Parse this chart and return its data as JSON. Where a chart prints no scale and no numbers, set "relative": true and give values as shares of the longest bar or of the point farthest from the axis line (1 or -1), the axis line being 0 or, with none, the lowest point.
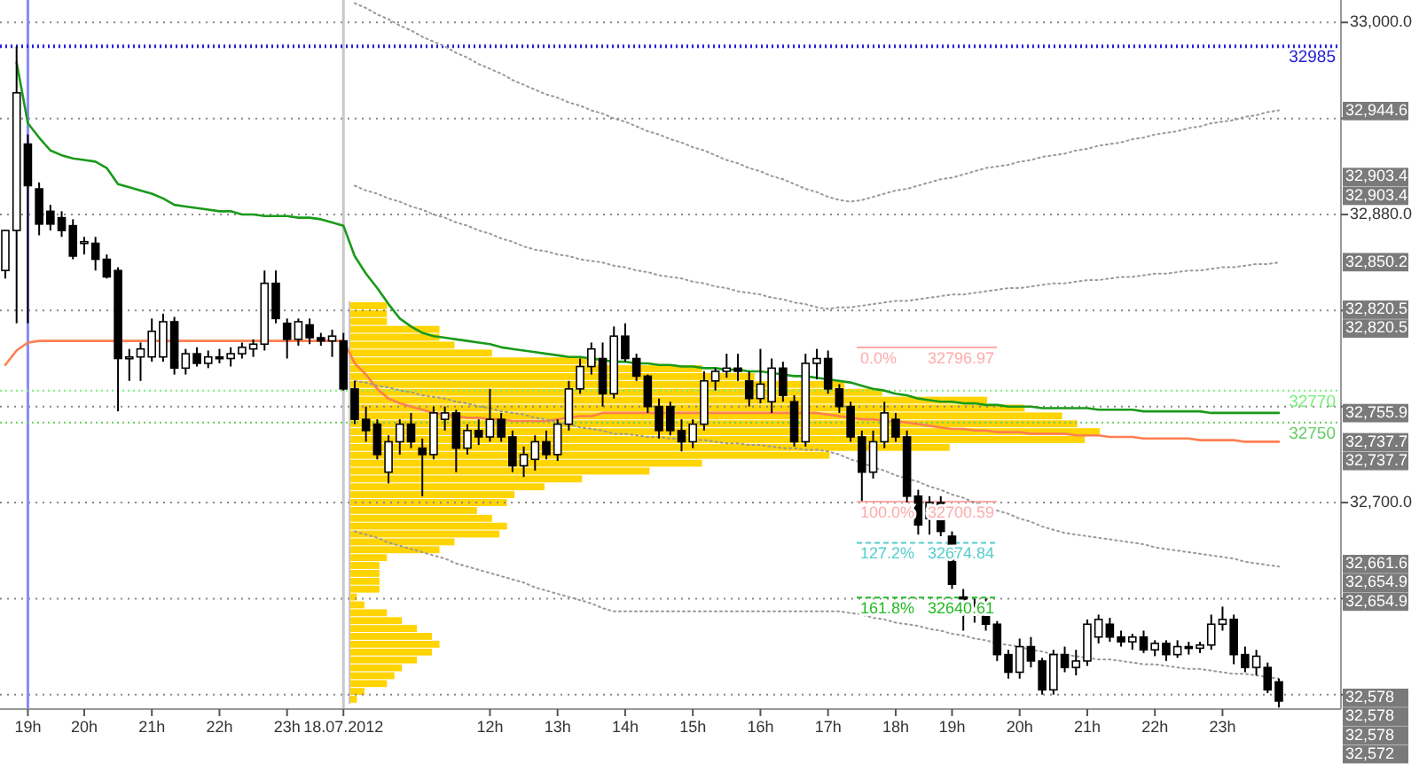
{
  "chart_data": [
    {
      "type": "candlestick",
      "color": "#000000",
      "grid": "y",
      "categories": [
        null,
        null,
        "19h",
        null,
        null,
        null,
        null,
        "20h",
        null,
        null,
        null,
        null,
        null,
        "21h",
        null,
        null,
        null,
        null,
        null,
        "22h",
        null,
        null,
        null,
        null,
        null,
        "23h",
        null,
        null,
        null,
        null,
        "18.07.2012",
        null,
        null,
        null,
        null,
        null,
        null,
        null,
        null,
        null,
        null,
        null,
        null,
        "12h",
        null,
        null,
        null,
        null,
        null,
        "13h",
        null,
        null,
        null,
        null,
        null,
        "14h",
        null,
        null,
        null,
        null,
        null,
        "15h",
        null,
        null,
        null,
        null,
        null,
        "16h",
        null,
        null,
        null,
        null,
        null,
        "17h",
        null,
        null,
        null,
        null,
        null,
        "18h",
        null,
        null,
        null,
        null,
        "19h",
        null,
        null,
        null,
        null,
        null,
        "20h",
        null,
        null,
        null,
        null,
        null,
        "21h",
        null,
        null,
        null,
        null,
        null,
        "22h",
        null,
        null,
        null,
        null,
        null,
        "23h",
        null,
        null,
        null,
        null,
        null
      ],
      "ohlc": [
        [
          32845,
          32870,
          32840,
          32870
        ],
        [
          32870,
          32985,
          32812,
          32956
        ],
        [
          32924,
          32930,
          32812,
          32898
        ],
        [
          32896,
          32900,
          32867,
          32874
        ],
        [
          32882,
          32886,
          32870,
          32874
        ],
        [
          32878,
          32882,
          32866,
          32870
        ],
        [
          32873,
          32877,
          32852,
          32854
        ],
        [
          32862,
          32866,
          32855,
          32863
        ],
        [
          32862,
          32866,
          32845,
          32852
        ],
        [
          32852,
          32855,
          32840,
          32841
        ],
        [
          32845,
          32847,
          32757,
          32790
        ],
        [
          32790,
          32796,
          32776,
          32791
        ],
        [
          32791,
          32800,
          32776,
          32796
        ],
        [
          32791,
          32815,
          32788,
          32807
        ],
        [
          32791,
          32818,
          32788,
          32813
        ],
        [
          32813,
          32816,
          32780,
          32784
        ],
        [
          32784,
          32796,
          32780,
          32793
        ],
        [
          32793,
          32797,
          32785,
          32787
        ],
        [
          32787,
          32795,
          32784,
          32791
        ],
        [
          32791,
          32796,
          32787,
          32790
        ],
        [
          32790,
          32797,
          32785,
          32793
        ],
        [
          32793,
          32800,
          32790,
          32797
        ],
        [
          32796,
          32802,
          32791,
          32799
        ],
        [
          32799,
          32845,
          32795,
          32837
        ],
        [
          32837,
          32845,
          32812,
          32815
        ],
        [
          32812,
          32815,
          32790,
          32802
        ],
        [
          32802,
          32815,
          32798,
          32813
        ],
        [
          32811,
          32815,
          32799,
          32803
        ],
        [
          32803,
          32806,
          32798,
          32801
        ],
        [
          32801,
          32808,
          32791,
          32804
        ],
        [
          32801,
          32806,
          32770,
          32771
        ],
        [
          32771,
          32776,
          32749,
          32752
        ],
        [
          32752,
          32760,
          32738,
          32745
        ],
        [
          32749,
          32752,
          32727,
          32730
        ],
        [
          32719,
          32742,
          32712,
          32738
        ],
        [
          32738,
          32752,
          32730,
          32749
        ],
        [
          32749,
          32756,
          32734,
          32738
        ],
        [
          32734,
          32740,
          32704,
          32730
        ],
        [
          32730,
          32760,
          32727,
          32756
        ],
        [
          32752,
          32760,
          32745,
          32756
        ],
        [
          32756,
          32758,
          32719,
          32734
        ],
        [
          32734,
          32749,
          32730,
          32745
        ],
        [
          32745,
          32752,
          32736,
          32741
        ],
        [
          32741,
          32771,
          32738,
          32752
        ],
        [
          32752,
          32756,
          32738,
          32741
        ],
        [
          32741,
          32745,
          32719,
          32723
        ],
        [
          32723,
          32735,
          32716,
          32730
        ],
        [
          32727,
          32742,
          32720,
          32738
        ],
        [
          32738,
          32745,
          32727,
          32730
        ],
        [
          32730,
          32752,
          32726,
          32749
        ],
        [
          32749,
          32776,
          32745,
          32771
        ],
        [
          32771,
          32790,
          32768,
          32785
        ],
        [
          32785,
          32800,
          32780,
          32796
        ],
        [
          32790,
          32800,
          32760,
          32768
        ],
        [
          32768,
          32810,
          32765,
          32804
        ],
        [
          32804,
          32812,
          32788,
          32790
        ],
        [
          32790,
          32793,
          32776,
          32779
        ],
        [
          32779,
          32780,
          32756,
          32760
        ],
        [
          32760,
          32765,
          32740,
          32745
        ],
        [
          32760,
          32763,
          32742,
          32745
        ],
        [
          32745,
          32752,
          32732,
          32738
        ],
        [
          32738,
          32752,
          32734,
          32749
        ],
        [
          32749,
          32782,
          32745,
          32776
        ],
        [
          32776,
          32784,
          32770,
          32782
        ],
        [
          32782,
          32793,
          32778,
          32784
        ],
        [
          32784,
          32793,
          32776,
          32782
        ],
        [
          32776,
          32782,
          32760,
          32765
        ],
        [
          32765,
          32796,
          32762,
          32774
        ],
        [
          32763,
          32790,
          32756,
          32784
        ],
        [
          32784,
          32788,
          32763,
          32767
        ],
        [
          32763,
          32767,
          32735,
          32738
        ],
        [
          32738,
          32793,
          32735,
          32787
        ],
        [
          32787,
          32796,
          32777,
          32790
        ],
        [
          32790,
          32795,
          32768,
          32771
        ],
        [
          32771,
          32774,
          32756,
          32760
        ],
        [
          32760,
          32763,
          32738,
          32741
        ],
        [
          32741,
          32745,
          32701,
          32719
        ],
        [
          32719,
          32745,
          32715,
          32738
        ],
        [
          32738,
          32763,
          32734,
          32756
        ],
        [
          32752,
          32756,
          32738,
          32741
        ],
        [
          32741,
          32745,
          32700,
          32704
        ],
        [
          32704,
          32708,
          32680,
          32686
        ],
        [
          32690,
          32704,
          32680,
          32700
        ],
        [
          32700,
          32704,
          32679,
          32682
        ],
        [
          32679,
          32682,
          32646,
          32649
        ],
        [
          32641,
          32646,
          32620,
          32630
        ],
        [
          32630,
          32640,
          32625,
          32635
        ],
        [
          32635,
          32640,
          32620,
          32624
        ],
        [
          32624,
          32626,
          32601,
          32605
        ],
        [
          32605,
          32608,
          32590,
          32594
        ],
        [
          32594,
          32615,
          32590,
          32610
        ],
        [
          32610,
          32616,
          32597,
          32601
        ],
        [
          32601,
          32603,
          32580,
          32583
        ],
        [
          32583,
          32608,
          32580,
          32605
        ],
        [
          32605,
          32610,
          32594,
          32597
        ],
        [
          32597,
          32608,
          32592,
          32601
        ],
        [
          32601,
          32627,
          32598,
          32624
        ],
        [
          32616,
          32630,
          32612,
          32627
        ],
        [
          32624,
          32628,
          32613,
          32616
        ],
        [
          32616,
          32620,
          32610,
          32613
        ],
        [
          32613,
          32618,
          32608,
          32616
        ],
        [
          32616,
          32620,
          32606,
          32608
        ],
        [
          32608,
          32614,
          32604,
          32612
        ],
        [
          32612,
          32614,
          32601,
          32605
        ],
        [
          32605,
          32614,
          32603,
          32610
        ],
        [
          32610,
          32613,
          32605,
          32609
        ],
        [
          32609,
          32613,
          32606,
          32611
        ],
        [
          32611,
          32630,
          32608,
          32624
        ],
        [
          32624,
          32635,
          32620,
          32627
        ],
        [
          32627,
          32630,
          32599,
          32605
        ],
        [
          32605,
          32610,
          32594,
          32597
        ],
        [
          32597,
          32608,
          32592,
          32604
        ],
        [
          32597,
          32600,
          32581,
          32583
        ],
        [
          32588,
          32590,
          32572,
          32576
        ]
      ],
      "series": [
        {
          "type": "line",
          "color": "#1a9a1a",
          "line_style": "solid",
          "values": [
            null,
            32975,
            32937,
            32928,
            32920,
            32917,
            32915,
            32914,
            32913,
            32909,
            32899,
            32897,
            32895,
            32893,
            32890,
            32886,
            32885,
            32884,
            32883,
            32882,
            32882,
            32880,
            32880,
            32879,
            32879,
            32879,
            32878,
            32878,
            32877,
            32875,
            32873,
            32854,
            32843,
            32834,
            32824,
            32815,
            32810,
            32806,
            32804,
            32803,
            32802,
            32801,
            32800,
            32799,
            32797,
            32796,
            32795,
            32794,
            32793,
            32792,
            32791,
            32791,
            32790,
            32789,
            32788,
            32788,
            32787,
            32787,
            32786,
            32786,
            32785,
            32785,
            32784,
            32784,
            32783,
            32783,
            32782,
            32782,
            32781,
            32780,
            32779,
            32779,
            32778,
            32777,
            32776,
            32775,
            32773,
            32771,
            32770,
            32768,
            32767,
            32765,
            32764,
            32763,
            32763,
            32762,
            32762,
            32761,
            32761,
            32760,
            32760,
            32760,
            32759,
            32759,
            32759,
            32759,
            32759,
            32758,
            32758,
            32758,
            32758,
            32757,
            32757,
            32757,
            32757,
            32757,
            32757,
            32756,
            32756,
            32756,
            32756,
            32756,
            32756,
            32756
          ]
        },
        {
          "type": "line",
          "color": "#ff7f50",
          "line_style": "solid",
          "values": [
            32786,
            32795,
            32800,
            32801,
            32801,
            32801,
            32801,
            32801,
            32801,
            32801,
            32801,
            32801,
            32801,
            32801,
            32801,
            32801,
            32801,
            32801,
            32801,
            32801,
            32801,
            32801,
            32801,
            32801,
            32801,
            32801,
            32801,
            32801,
            32801,
            32801,
            32801,
            32787,
            32780,
            32771,
            32765,
            32762,
            32760,
            32758,
            32756,
            32755,
            32754,
            32753,
            32753,
            32752,
            32752,
            32751,
            32751,
            32751,
            32751,
            32752,
            32753,
            32754,
            32754,
            32756,
            32756,
            32756,
            32756,
            32756,
            32756,
            32756,
            32756,
            32756,
            32756,
            32756,
            32756,
            32756,
            32756,
            32756,
            32756,
            32756,
            32756,
            32756,
            32756,
            32755,
            32754,
            32753,
            32752,
            32752,
            32751,
            32751,
            32750,
            32749,
            32748,
            32747,
            32746,
            32746,
            32745,
            32745,
            32744,
            32744,
            32744,
            32743,
            32743,
            32743,
            32743,
            32742,
            32742,
            32742,
            32741,
            32741,
            32741,
            32740,
            32740,
            32740,
            32740,
            32740,
            32739,
            32739,
            32739,
            32739,
            32738,
            32738,
            32738,
            32738
          ]
        },
        {
          "type": "line",
          "color": "#999999",
          "line_style": "dotted",
          "values": [
            null,
            null,
            null,
            null,
            null,
            null,
            null,
            null,
            null,
            null,
            null,
            null,
            null,
            null,
            null,
            null,
            null,
            null,
            null,
            null,
            null,
            null,
            null,
            null,
            null,
            null,
            null,
            null,
            null,
            null,
            null,
            33012,
            33009,
            33005,
            33002,
            32998,
            32995,
            32991,
            32988,
            32985,
            32981,
            32978,
            32974,
            32971,
            32968,
            32964,
            32961,
            32958,
            32955,
            32953,
            32950,
            32948,
            32945,
            32943,
            32940,
            32938,
            32935,
            32932,
            32930,
            32927,
            32925,
            32922,
            32920,
            32917,
            32914,
            32912,
            32909,
            32907,
            32904,
            32902,
            32899,
            32896,
            32894,
            32891,
            32889,
            32888,
            32889,
            32891,
            32893,
            32895,
            32896,
            32898,
            32900,
            32902,
            32903,
            32905,
            32907,
            32909,
            32910,
            32911,
            32913,
            32914,
            32916,
            32917,
            32918,
            32920,
            32921,
            32923,
            32924,
            32925,
            32927,
            32928,
            32930,
            32931,
            32932,
            32934,
            32935,
            32937,
            32938,
            32939,
            32941,
            32942,
            32944,
            32945
          ]
        },
        {
          "type": "line",
          "color": "#999999",
          "line_style": "dotted",
          "values": [
            null,
            null,
            null,
            null,
            null,
            null,
            null,
            null,
            null,
            null,
            null,
            null,
            null,
            null,
            null,
            null,
            null,
            null,
            null,
            null,
            null,
            null,
            null,
            null,
            null,
            null,
            null,
            null,
            null,
            null,
            null,
            32898,
            32895,
            32893,
            32890,
            32888,
            32885,
            32883,
            32880,
            32878,
            32875,
            32873,
            32870,
            32868,
            32865,
            32863,
            32860,
            32858,
            32857,
            32855,
            32854,
            32852,
            32851,
            32850,
            32848,
            32847,
            32845,
            32844,
            32842,
            32841,
            32840,
            32838,
            32837,
            32835,
            32834,
            32832,
            32831,
            32830,
            32828,
            32827,
            32825,
            32824,
            32822,
            32821,
            32822,
            32822,
            32823,
            32824,
            32825,
            32826,
            32826,
            32827,
            32828,
            32829,
            32830,
            32830,
            32831,
            32832,
            32833,
            32834,
            32834,
            32835,
            32836,
            32837,
            32837,
            32838,
            32839,
            32839,
            32840,
            32841,
            32841,
            32842,
            32843,
            32843,
            32844,
            32845,
            32845,
            32846,
            32847,
            32847,
            32848,
            32849,
            32849,
            32850
          ]
        },
        {
          "type": "line",
          "color": "#999999",
          "line_style": "dotted",
          "values": [
            null,
            null,
            null,
            null,
            null,
            null,
            null,
            null,
            null,
            null,
            null,
            null,
            null,
            null,
            null,
            null,
            null,
            null,
            null,
            null,
            null,
            null,
            null,
            null,
            null,
            null,
            null,
            null,
            null,
            null,
            null,
            32776,
            32775,
            32773,
            32772,
            32770,
            32769,
            32767,
            32766,
            32765,
            32763,
            32762,
            32760,
            32759,
            32757,
            32756,
            32755,
            32753,
            32752,
            32750,
            32749,
            32747,
            32746,
            32745,
            32743,
            32743,
            32742,
            32741,
            32741,
            32740,
            32740,
            32739,
            32739,
            32738,
            32737,
            32737,
            32736,
            32736,
            32735,
            32734,
            32734,
            32733,
            32733,
            32732,
            32730,
            32727,
            32725,
            32722,
            32720,
            32717,
            32715,
            32713,
            32710,
            32708,
            32705,
            32703,
            32700,
            32698,
            32695,
            32693,
            32690,
            32688,
            32685,
            32683,
            32681,
            32680,
            32679,
            32678,
            32677,
            32676,
            32675,
            32674,
            32672,
            32671,
            32670,
            32669,
            32668,
            32667,
            32666,
            32665,
            32663,
            32662,
            32661,
            32660
          ]
        },
        {
          "type": "line",
          "color": "#999999",
          "line_style": "dotted",
          "values": [
            null,
            null,
            null,
            null,
            null,
            null,
            null,
            null,
            null,
            null,
            null,
            null,
            null,
            null,
            null,
            null,
            null,
            null,
            null,
            null,
            null,
            null,
            null,
            null,
            null,
            null,
            null,
            null,
            null,
            null,
            null,
            32682,
            32680,
            32678,
            32675,
            32673,
            32671,
            32669,
            32667,
            32665,
            32662,
            32660,
            32658,
            32656,
            32654,
            32652,
            32650,
            32647,
            32645,
            32643,
            32641,
            32639,
            32637,
            32634,
            32632,
            32632,
            32632,
            32632,
            32632,
            32632,
            32632,
            32632,
            32632,
            32632,
            32632,
            32632,
            32632,
            32632,
            32632,
            32632,
            32632,
            32632,
            32632,
            32632,
            32632,
            32631,
            32630,
            32628,
            32627,
            32625,
            32624,
            32623,
            32621,
            32620,
            32618,
            32617,
            32615,
            32614,
            32612,
            32611,
            32610,
            32608,
            32607,
            32605,
            32605,
            32604,
            32603,
            32602,
            32602,
            32601,
            32600,
            32599,
            32599,
            32598,
            32597,
            32596,
            32596,
            32595,
            32594,
            32593,
            32593,
            32592,
            32591,
            32590
          ]
        }
      ],
      "ylim": [
        32571,
        33014
      ],
      "yticks": [
        {
          "value": 32580,
          "label": null
        },
        {
          "value": 32640,
          "label": null
        },
        {
          "value": 32700,
          "label": "32,700.0"
        },
        {
          "value": 32760,
          "label": null
        },
        {
          "value": 32820,
          "label": null
        },
        {
          "value": 32880,
          "label": "32,880.0"
        },
        {
          "value": 32940,
          "label": null
        },
        {
          "value": 33000,
          "label": "33,000.0"
        }
      ],
      "ref_lines": [
        {
          "axis": "x",
          "value": "19h",
          "color": "#8888ff",
          "line_style": "solid"
        },
        {
          "axis": "x",
          "value": "18.07.2012",
          "color": "#c8c8c8",
          "line_style": "solid"
        },
        {
          "axis": "y",
          "value": 32985,
          "label": "32985",
          "color": "#2020dd",
          "line_style": "dotted"
        },
        {
          "axis": "y",
          "value": 32770,
          "label": "32770",
          "color": "#77ee77",
          "line_style": "dotted"
        },
        {
          "axis": "y",
          "value": 32750,
          "label": "32750",
          "color": "#66cc66",
          "line_style": "dotted"
        },
        {
          "axis": "y",
          "value": 32796.97,
          "label": "0.0%       32796.97",
          "color": "#ffaaaa",
          "line_style": "solid"
        },
        {
          "axis": "y",
          "value": 32700.59,
          "label": "100.0%   32700.59",
          "color": "#ffaaaa",
          "line_style": "solid"
        },
        {
          "axis": "y",
          "value": 32674.84,
          "label": "127.2%   32674.84",
          "color": "#55cccc",
          "line_style": "dashed"
        },
        {
          "axis": "y",
          "value": 32640.61,
          "label": "161.8%   32640.61",
          "color": "#22bb22",
          "line_style": "dashed"
        }
      ],
      "annotations": [
        "32,944.6",
        "32,903.4",
        "32,903.4",
        "32,850.2",
        "32,820.5",
        "32,820.5",
        "32,755.9",
        "32,737.7",
        "32,737.7",
        "32,661.6",
        "32,654.9",
        "32,654.9",
        "32,578",
        "32,578",
        "32,578",
        "32,572"
      ]
    },
    {
      "type": "bar",
      "orientation": "horizontal",
      "relative": true,
      "color": "#ffd400",
      "categories": [
        null,
        null,
        null,
        null,
        null,
        null,
        null,
        null,
        null,
        null,
        null,
        null,
        null,
        null,
        null,
        null,
        null,
        null,
        null,
        null,
        null,
        null,
        null,
        null,
        null,
        null,
        null,
        null,
        null,
        null,
        null,
        null,
        null,
        null,
        null,
        null,
        null,
        null,
        null,
        null,
        null,
        null,
        null,
        null,
        null,
        null,
        null,
        null,
        null,
        null,
        null
      ],
      "values": [
        0.05,
        0.05,
        0.05,
        0.12,
        0.12,
        0.14,
        0.19,
        0.33,
        0.47,
        0.54,
        0.66,
        0.71,
        0.85,
        0.9,
        0.95,
        0.97,
        1,
        0.98,
        0.8,
        0.64,
        0.47,
        0.4,
        0.31,
        0.26,
        0.22,
        0.21,
        0.17,
        0.19,
        0.21,
        0.2,
        0.14,
        0.12,
        0.05,
        0.04,
        0.04,
        0.04,
        0.04,
        0.01,
        0.02,
        0.05,
        0.07,
        0.09,
        0.11,
        0.12,
        0.11,
        0.09,
        0.07,
        0.06,
        0.05,
        0.02,
        0.01
      ]
    }
  ]
}
